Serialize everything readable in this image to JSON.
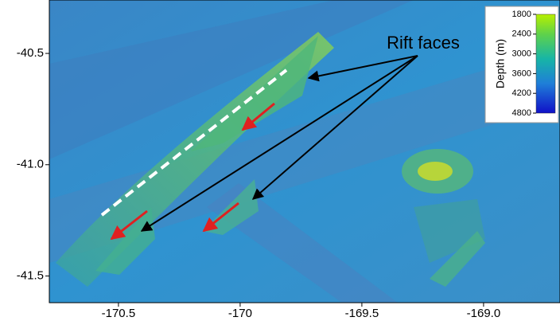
{
  "map": {
    "annotation": "Rift faces",
    "axes": {
      "xlim": [
        -170.784,
        -168.686
      ],
      "ylim": [
        -41.62,
        -40.26
      ],
      "xticks": [
        -170.5,
        -170.0,
        {
          "value": -169.5,
          "label": "-169.5"
        },
        {
          "value": -169.0,
          "label": "-169.0"
        }
      ],
      "yticks": [
        -40.5,
        {
          "value": -41.0,
          "label": "-41.0"
        },
        -41.5
      ]
    },
    "colorbar": {
      "title": "Depth (m)",
      "ticks": [
        1800,
        2400,
        3000,
        3600,
        4200,
        4800
      ]
    }
  }
}
